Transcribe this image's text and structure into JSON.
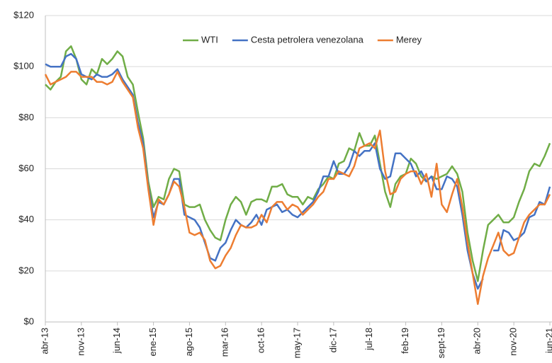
{
  "chart_data": {
    "type": "line",
    "categories": [
      "abr-13",
      null,
      null,
      null,
      null,
      null,
      null,
      "nov-13",
      null,
      null,
      null,
      null,
      null,
      null,
      "jun-14",
      null,
      null,
      null,
      null,
      null,
      null,
      "ene-15",
      null,
      null,
      null,
      null,
      null,
      null,
      "ago-15",
      null,
      null,
      null,
      null,
      null,
      null,
      "mar-16",
      null,
      null,
      null,
      null,
      null,
      null,
      "oct-16",
      null,
      null,
      null,
      null,
      null,
      null,
      "may-17",
      null,
      null,
      null,
      null,
      null,
      null,
      "dic-17",
      null,
      null,
      null,
      null,
      null,
      null,
      "jul-18",
      null,
      null,
      null,
      null,
      null,
      null,
      "feb-19",
      null,
      null,
      null,
      null,
      null,
      null,
      "sept-19",
      null,
      null,
      null,
      null,
      null,
      null,
      "abr-20",
      null,
      null,
      null,
      null,
      null,
      null,
      "nov-20",
      null,
      null,
      null,
      null,
      null,
      null,
      "jun-21"
    ],
    "series": [
      {
        "name": "WTI",
        "color": "#70ad47",
        "values": [
          93,
          91,
          94,
          96,
          106,
          108,
          103,
          95,
          93,
          99,
          97,
          103,
          101,
          103,
          106,
          104,
          96,
          93,
          82,
          72,
          55,
          45,
          49,
          48,
          56,
          60,
          59,
          46,
          45,
          45,
          46,
          40,
          36,
          33,
          32,
          40,
          46,
          49,
          47,
          42,
          47,
          48,
          48,
          47,
          53,
          53,
          54,
          50,
          49,
          49,
          46,
          49,
          48,
          52,
          54,
          57,
          56,
          62,
          63,
          68,
          67,
          74,
          69,
          69,
          73,
          62,
          51,
          45,
          54,
          57,
          58,
          64,
          62,
          57,
          55,
          57,
          56,
          57,
          58,
          61,
          58,
          51,
          35,
          24,
          16,
          28,
          38,
          40,
          42,
          39,
          39,
          41,
          47,
          52,
          59,
          62,
          61,
          65,
          70
        ]
      },
      {
        "name": "Cesta petrolera venezolana",
        "color": "#4472c4",
        "values": [
          101,
          100,
          100,
          100,
          104,
          105,
          103,
          97,
          96,
          95,
          97,
          96,
          96,
          97,
          99,
          95,
          92,
          89,
          78,
          70,
          53,
          41,
          47,
          46,
          50,
          56,
          56,
          42,
          41,
          40,
          37,
          31,
          25,
          24,
          29,
          31,
          36,
          40,
          38,
          37,
          39,
          42,
          38,
          44,
          45,
          46,
          43,
          44,
          42,
          41,
          43,
          45,
          47,
          51,
          57,
          57,
          63,
          58,
          58,
          61,
          67,
          65,
          67,
          67,
          70,
          60,
          56,
          57,
          66,
          66,
          64,
          62,
          57,
          59,
          55,
          57,
          52,
          52,
          57,
          56,
          53,
          42,
          28,
          19,
          13,
          17,
          null,
          28,
          28,
          36,
          35,
          32,
          33,
          35,
          41,
          42,
          47,
          46,
          53
        ]
      },
      {
        "name": "Merey",
        "color": "#ed7d31",
        "values": [
          97,
          93,
          94,
          95,
          96,
          98,
          98,
          96,
          96,
          96,
          94,
          94,
          93,
          94,
          98,
          94,
          91,
          88,
          76,
          68,
          52,
          38,
          48,
          46,
          50,
          55,
          53,
          45,
          35,
          34,
          35,
          32,
          24,
          21,
          22,
          26,
          29,
          34,
          38,
          37,
          37,
          38,
          42,
          39,
          45,
          47,
          47,
          44,
          46,
          45,
          42,
          44,
          46,
          49,
          51,
          56,
          56,
          59,
          58,
          57,
          61,
          68,
          69,
          70,
          68,
          75,
          59,
          50,
          51,
          56,
          58,
          59,
          59,
          54,
          58,
          49,
          62,
          46,
          43,
          50,
          56,
          45,
          31,
          19,
          7,
          18,
          25,
          30,
          35,
          28,
          26,
          27,
          33,
          39,
          42,
          44,
          46,
          46,
          50
        ]
      }
    ],
    "ylim": [
      0,
      120
    ],
    "yticks": [
      {
        "value": 0,
        "label": "$0"
      },
      {
        "value": 20,
        "label": "$20"
      },
      {
        "value": 40,
        "label": "$40"
      },
      {
        "value": 60,
        "label": "$60"
      },
      {
        "value": 80,
        "label": "$80"
      },
      {
        "value": 100,
        "label": "$100"
      },
      {
        "value": 120,
        "label": "$120"
      }
    ],
    "grid": true,
    "legend": "top"
  }
}
